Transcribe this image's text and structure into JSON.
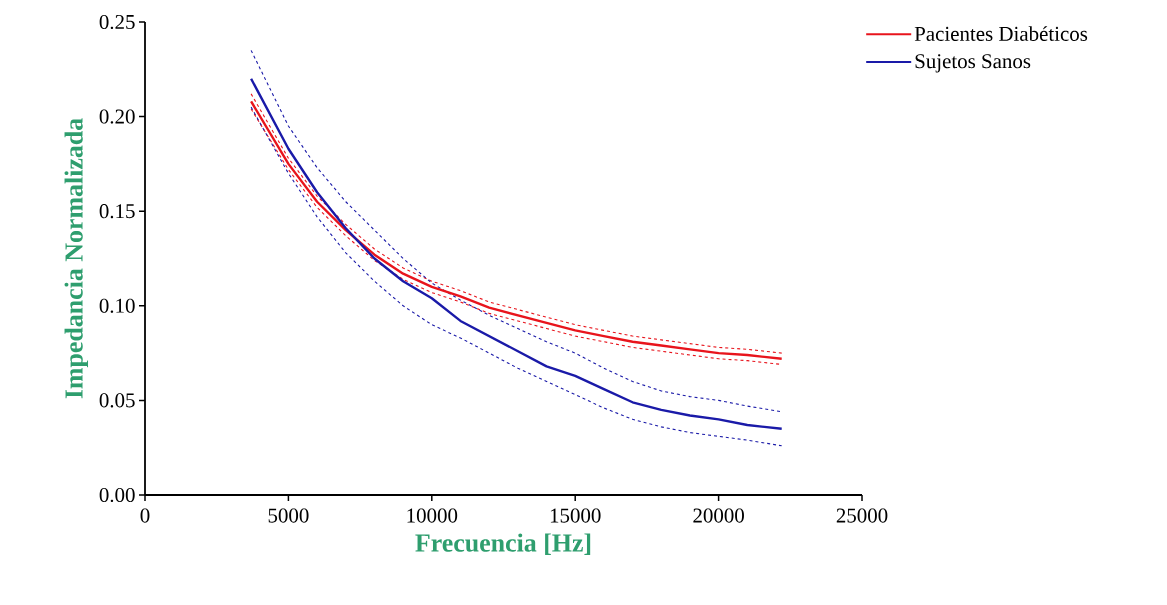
{
  "chart_data": {
    "type": "line",
    "xlabel": "Frecuencia [Hz]",
    "ylabel": "Impedancia Normalizada",
    "xlim": [
      0,
      25000
    ],
    "xticks": [
      0,
      5000,
      10000,
      15000,
      20000,
      25000
    ],
    "ylim": [
      0,
      0.25
    ],
    "yticks": [
      {
        "value": 0,
        "label": "0.00"
      },
      {
        "value": 0.05,
        "label": "0.05"
      },
      {
        "value": 0.1,
        "label": "0.10"
      },
      {
        "value": 0.15,
        "label": "0.15"
      },
      {
        "value": 0.2,
        "label": "0.20"
      },
      {
        "value": 0.25,
        "label": "0.25"
      }
    ],
    "legend": "top right",
    "series": [
      {
        "color": "#e8141c",
        "line_style": "dashed",
        "x": [
          3700,
          5000,
          6000,
          7000,
          8000,
          9000,
          10000,
          11000,
          12000,
          13000,
          14000,
          15000,
          16000,
          17000,
          18000,
          19000,
          20000,
          21000,
          22200
        ],
        "values": [
          0.204,
          0.172,
          0.152,
          0.137,
          0.124,
          0.114,
          0.107,
          0.102,
          0.096,
          0.092,
          0.088,
          0.084,
          0.081,
          0.078,
          0.076,
          0.074,
          0.072,
          0.071,
          0.069
        ]
      },
      {
        "color": "#e8141c",
        "line_style": "dashed",
        "x": [
          3700,
          5000,
          6000,
          7000,
          8000,
          9000,
          10000,
          11000,
          12000,
          13000,
          14000,
          15000,
          16000,
          17000,
          18000,
          19000,
          20000,
          21000,
          22200
        ],
        "values": [
          0.212,
          0.178,
          0.158,
          0.143,
          0.13,
          0.12,
          0.113,
          0.108,
          0.102,
          0.098,
          0.094,
          0.09,
          0.087,
          0.084,
          0.082,
          0.08,
          0.078,
          0.077,
          0.075
        ]
      },
      {
        "color": "#1a1aa8",
        "line_style": "dashed",
        "x": [
          3700,
          5000,
          6000,
          7000,
          8000,
          9000,
          10000,
          11000,
          12000,
          13000,
          14000,
          15000,
          16000,
          17000,
          18000,
          19000,
          20000,
          21000,
          22200
        ],
        "values": [
          0.205,
          0.17,
          0.147,
          0.128,
          0.113,
          0.1,
          0.09,
          0.083,
          0.075,
          0.067,
          0.06,
          0.053,
          0.046,
          0.04,
          0.036,
          0.033,
          0.031,
          0.029,
          0.026
        ]
      },
      {
        "color": "#1a1aa8",
        "line_style": "dashed",
        "x": [
          3700,
          5000,
          6000,
          7000,
          8000,
          9000,
          10000,
          11000,
          12000,
          13000,
          14000,
          15000,
          16000,
          17000,
          18000,
          19000,
          20000,
          21000,
          22200
        ],
        "values": [
          0.235,
          0.195,
          0.173,
          0.155,
          0.14,
          0.125,
          0.112,
          0.103,
          0.095,
          0.088,
          0.081,
          0.075,
          0.067,
          0.06,
          0.055,
          0.052,
          0.05,
          0.047,
          0.044
        ]
      },
      {
        "name": "Pacientes Diabéticos",
        "color": "#e8141c",
        "line_style": "solid",
        "x": [
          3700,
          5000,
          6000,
          7000,
          8000,
          9000,
          10000,
          11000,
          12000,
          13000,
          14000,
          15000,
          16000,
          17000,
          18000,
          19000,
          20000,
          21000,
          22200
        ],
        "values": [
          0.208,
          0.175,
          0.155,
          0.14,
          0.127,
          0.117,
          0.11,
          0.105,
          0.099,
          0.095,
          0.091,
          0.087,
          0.084,
          0.081,
          0.079,
          0.077,
          0.075,
          0.074,
          0.072
        ]
      },
      {
        "name": "Sujetos Sanos",
        "color": "#1a1aa8",
        "line_style": "solid",
        "x": [
          3700,
          5000,
          6000,
          7000,
          8000,
          9000,
          10000,
          11000,
          12000,
          13000,
          14000,
          15000,
          16000,
          17000,
          18000,
          19000,
          20000,
          21000,
          22200
        ],
        "values": [
          0.22,
          0.183,
          0.16,
          0.141,
          0.125,
          0.113,
          0.104,
          0.092,
          0.084,
          0.076,
          0.068,
          0.063,
          0.056,
          0.049,
          0.045,
          0.042,
          0.04,
          0.037,
          0.035
        ]
      }
    ]
  }
}
